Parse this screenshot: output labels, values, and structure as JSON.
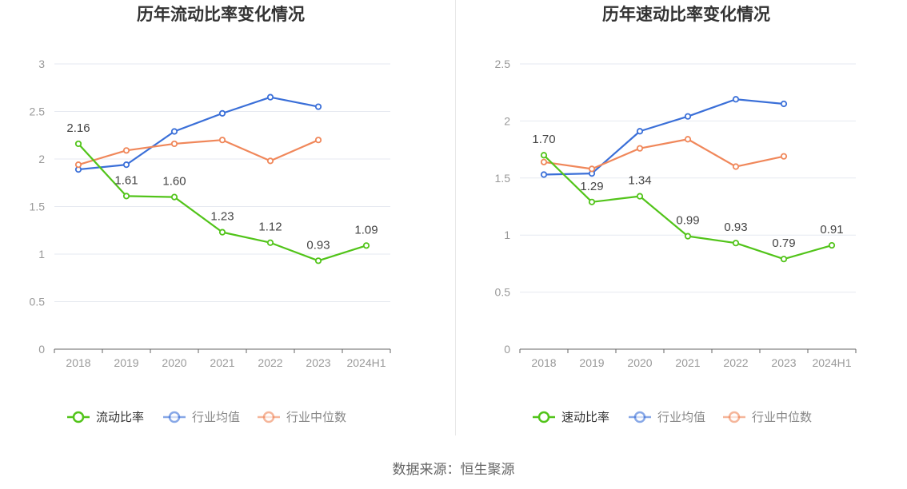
{
  "source": "数据来源：恒生聚源",
  "colors": {
    "company": "#52c41a",
    "industry_avg": "#3a6fd8",
    "industry_median": "#f0875a",
    "axis": "#666666",
    "grid": "#e6e9f0",
    "label": "#999999",
    "title": "#333333"
  },
  "chart_data": [
    {
      "type": "line",
      "title": "历年流动比率变化情况",
      "categories": [
        "2018",
        "2019",
        "2020",
        "2021",
        "2022",
        "2023",
        "2024H1"
      ],
      "ylim": [
        0,
        3
      ],
      "yticks": [
        0,
        0.5,
        1,
        1.5,
        2,
        2.5,
        3
      ],
      "ytick_labels": [
        "0",
        "0.5",
        "1",
        "1.5",
        "2",
        "2.5",
        "3"
      ],
      "grid": true,
      "legend_position": "bottom",
      "series": [
        {
          "name": "流动比率",
          "key": "company",
          "values": [
            2.16,
            1.61,
            1.6,
            1.23,
            1.12,
            0.93,
            1.09
          ],
          "labels": [
            "2.16",
            "1.61",
            "1.60",
            "1.23",
            "1.12",
            "0.93",
            "1.09"
          ]
        },
        {
          "name": "行业均值",
          "key": "industry_avg",
          "values": [
            1.89,
            1.94,
            2.29,
            2.48,
            2.65,
            2.55,
            null
          ]
        },
        {
          "name": "行业中位数",
          "key": "industry_median",
          "values": [
            1.94,
            2.09,
            2.16,
            2.2,
            1.98,
            2.2,
            null
          ]
        }
      ]
    },
    {
      "type": "line",
      "title": "历年速动比率变化情况",
      "categories": [
        "2018",
        "2019",
        "2020",
        "2021",
        "2022",
        "2023",
        "2024H1"
      ],
      "ylim": [
        0,
        2.5
      ],
      "yticks": [
        0,
        0.5,
        1,
        1.5,
        2,
        2.5
      ],
      "ytick_labels": [
        "0",
        "0.5",
        "1",
        "1.5",
        "2",
        "2.5"
      ],
      "grid": true,
      "legend_position": "bottom",
      "series": [
        {
          "name": "速动比率",
          "key": "company",
          "values": [
            1.7,
            1.29,
            1.34,
            0.99,
            0.93,
            0.79,
            0.91
          ],
          "labels": [
            "1.70",
            "1.29",
            "1.34",
            "0.99",
            "0.93",
            "0.79",
            "0.91"
          ]
        },
        {
          "name": "行业均值",
          "key": "industry_avg",
          "values": [
            1.53,
            1.54,
            1.91,
            2.04,
            2.19,
            2.15,
            null
          ]
        },
        {
          "name": "行业中位数",
          "key": "industry_median",
          "values": [
            1.64,
            1.58,
            1.76,
            1.84,
            1.6,
            1.69,
            null
          ]
        }
      ]
    }
  ]
}
